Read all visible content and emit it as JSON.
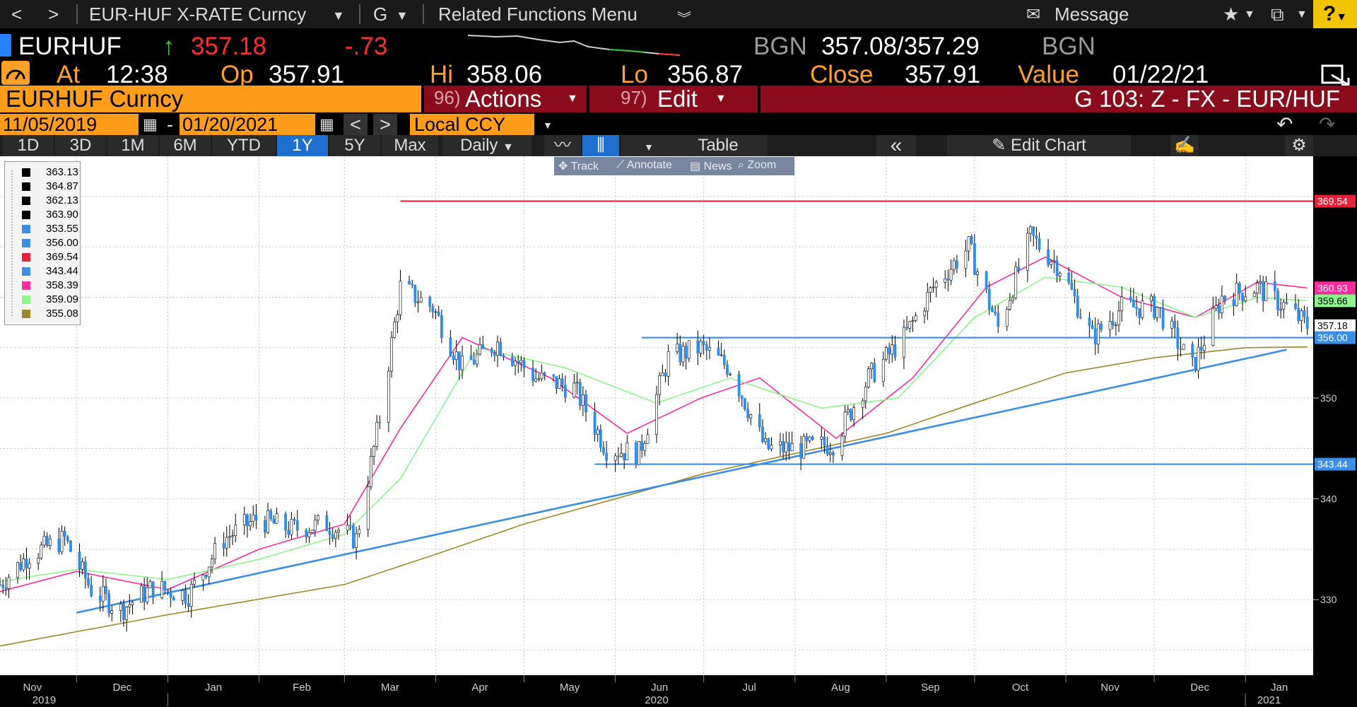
{
  "menu": {
    "back": "<",
    "forward": ">",
    "security": "EUR-HUF X-RATE Curncy",
    "function": "G",
    "related": "Related Functions Menu",
    "message": "Message",
    "help": "?"
  },
  "quote": {
    "ticker": "EURHUF",
    "last": "357.18",
    "change": "-.73",
    "bid_src": "BGN",
    "bid_ask": "357.08/357.29",
    "ask_src": "BGN",
    "at_label": "At",
    "time": "12:38",
    "open_label": "Op",
    "open": "357.91",
    "high_label": "Hi",
    "high": "358.06",
    "low_label": "Lo",
    "low": "356.87",
    "close_label": "Close",
    "close": "357.91",
    "value_label": "Value",
    "value_date": "01/22/21"
  },
  "actionbar": {
    "ticker_box": "EURHUF Curncy",
    "actions_num": "96)",
    "actions": "Actions",
    "edit_num": "97)",
    "edit": "Edit",
    "chart_id": "G 103: Z - FX - EUR/HUF"
  },
  "dates": {
    "start": "11/05/2019",
    "dash": "-",
    "end": "01/20/2021",
    "prev": "<",
    "next": ">",
    "currency": "Local CCY"
  },
  "timeframes": [
    "1D",
    "3D",
    "1M",
    "6M",
    "YTD",
    "1Y",
    "5Y",
    "Max"
  ],
  "active_timeframe": "1Y",
  "toolbar": {
    "period": "Daily",
    "table": "Table",
    "collapse": "«",
    "edit_chart": "Edit Chart"
  },
  "chart_tools": [
    "Track",
    "Annotate",
    "News",
    "Zoom"
  ],
  "legend": [
    {
      "value": "363.13",
      "color": "#000000"
    },
    {
      "value": "364.87",
      "color": "#000000"
    },
    {
      "value": "362.13",
      "color": "#000000"
    },
    {
      "value": "363.90",
      "color": "#000000"
    },
    {
      "value": "353.55",
      "color": "#3a8ee6"
    },
    {
      "value": "356.00",
      "color": "#3a8ee6"
    },
    {
      "value": "369.54",
      "color": "#e8203a"
    },
    {
      "value": "343.44",
      "color": "#3a8ee6"
    },
    {
      "value": "358.39",
      "color": "#ff2a9c"
    },
    {
      "value": "359.09",
      "color": "#8cf58c"
    },
    {
      "value": "355.08",
      "color": "#9a8a28"
    }
  ],
  "colors": {
    "up": "#ffffff",
    "down": "#2d8cf0",
    "resistance": "#e8203a",
    "support": "#3a8ee6",
    "ma_short": "#ff2a9c",
    "ma_mid": "#8cf58c",
    "ma_long": "#9a8a28"
  },
  "chart_data": {
    "type": "line",
    "title": "",
    "ylim": [
      322.5,
      374.0
    ],
    "xlim": [
      "2019-11-05",
      "2021-01-24"
    ],
    "y_ticks": [
      330,
      340,
      350
    ],
    "month_labels": [
      {
        "label": "Nov",
        "date": "2019-11-01"
      },
      {
        "label": "Dec",
        "date": "2019-12-01"
      },
      {
        "label": "Jan",
        "date": "2020-01-01"
      },
      {
        "label": "Feb",
        "date": "2020-02-01"
      },
      {
        "label": "Mar",
        "date": "2020-03-01"
      },
      {
        "label": "Apr",
        "date": "2020-04-01"
      },
      {
        "label": "May",
        "date": "2020-05-01"
      },
      {
        "label": "Jun",
        "date": "2020-06-01"
      },
      {
        "label": "Jul",
        "date": "2020-07-01"
      },
      {
        "label": "Aug",
        "date": "2020-08-01"
      },
      {
        "label": "Sep",
        "date": "2020-09-01"
      },
      {
        "label": "Oct",
        "date": "2020-10-01"
      },
      {
        "label": "Nov",
        "date": "2020-11-01"
      },
      {
        "label": "Dec",
        "date": "2020-12-01"
      },
      {
        "label": "Jan",
        "date": "2021-01-01"
      }
    ],
    "year_labels": [
      {
        "label": "2019",
        "date": "2019-11-20"
      },
      {
        "label": "2020",
        "date": "2020-06-15"
      },
      {
        "label": "2021",
        "date": "2021-01-09"
      }
    ],
    "price_axis_labels": [
      {
        "value": 369.54,
        "label": "369.54",
        "color": "#e8203a"
      },
      {
        "value": 360.93,
        "label": "360.93",
        "color": "#ff2a9c"
      },
      {
        "value": 359.66,
        "label": "359.66",
        "color": "#8cf58c"
      },
      {
        "value": 357.18,
        "label": "357.18",
        "color": "#ffffff"
      },
      {
        "value": 356.0,
        "label": "356.00",
        "color": "#3a8ee6"
      },
      {
        "value": 343.44,
        "label": "343.44",
        "color": "#3a8ee6"
      }
    ],
    "horizontal_lines": [
      {
        "name": "",
        "value": 369.54,
        "from": "2020-03-20",
        "to": "2021-01-24",
        "color": "#e8203a"
      },
      {
        "name": "",
        "value": 356.0,
        "from": "2020-06-10",
        "to": "2021-01-24",
        "color": "#3a8ee6"
      },
      {
        "name": "",
        "value": 343.44,
        "from": "2020-05-25",
        "to": "2021-01-24",
        "color": "#3a8ee6"
      }
    ],
    "trendline": {
      "x": [
        "2019-12-01",
        "2021-01-15"
      ],
      "y": [
        328.7,
        354.8
      ],
      "color": "#3a8ee6"
    },
    "price_series": {
      "x": [
        "2019-11-05",
        "2019-11-15",
        "2019-11-27",
        "2019-12-06",
        "2019-12-16",
        "2019-12-27",
        "2020-01-08",
        "2020-01-20",
        "2020-01-31",
        "2020-02-12",
        "2020-02-24",
        "2020-03-05",
        "2020-03-13",
        "2020-03-20",
        "2020-03-31",
        "2020-04-10",
        "2020-04-22",
        "2020-05-05",
        "2020-05-18",
        "2020-05-29",
        "2020-06-09",
        "2020-06-19",
        "2020-06-30",
        "2020-07-10",
        "2020-07-22",
        "2020-08-03",
        "2020-08-14",
        "2020-08-26",
        "2020-09-07",
        "2020-09-17",
        "2020-09-29",
        "2020-10-09",
        "2020-10-20",
        "2020-10-30",
        "2020-11-10",
        "2020-11-20",
        "2020-12-02",
        "2020-12-14",
        "2020-12-24",
        "2021-01-05",
        "2021-01-15",
        "2021-01-22"
      ],
      "y": [
        331.5,
        334.5,
        336.0,
        331.0,
        329.0,
        331.2,
        330.5,
        336.0,
        338.0,
        337.0,
        337.5,
        336.0,
        348.0,
        361.0,
        359.0,
        353.0,
        355.5,
        352.0,
        351.0,
        345.0,
        344.5,
        354.0,
        355.0,
        353.0,
        345.0,
        345.0,
        345.5,
        352.0,
        356.0,
        361.0,
        365.0,
        357.0,
        366.0,
        363.0,
        356.0,
        359.0,
        359.0,
        353.0,
        360.0,
        361.0,
        359.0,
        357.18
      ]
    },
    "series": [
      {
        "name": "",
        "color": "#ff2a9c",
        "x": [
          "2019-11-05",
          "2019-12-01",
          "2020-01-01",
          "2020-02-01",
          "2020-03-01",
          "2020-03-20",
          "2020-04-10",
          "2020-05-10",
          "2020-06-05",
          "2020-06-30",
          "2020-07-20",
          "2020-08-15",
          "2020-09-10",
          "2020-10-05",
          "2020-10-25",
          "2020-11-20",
          "2020-12-15",
          "2021-01-05",
          "2021-01-22"
        ],
        "y": [
          330.8,
          332.8,
          331.0,
          335.0,
          337.5,
          347.0,
          356.0,
          352.0,
          346.5,
          350.0,
          352.0,
          346.0,
          352.0,
          361.0,
          364.0,
          360.0,
          358.0,
          361.5,
          360.93
        ]
      },
      {
        "name": "",
        "color": "#8cf58c",
        "x": [
          "2019-11-05",
          "2019-12-01",
          "2020-01-01",
          "2020-02-01",
          "2020-03-01",
          "2020-03-20",
          "2020-04-15",
          "2020-05-15",
          "2020-06-15",
          "2020-07-10",
          "2020-08-10",
          "2020-09-05",
          "2020-10-01",
          "2020-10-25",
          "2020-11-20",
          "2020-12-15",
          "2021-01-05",
          "2021-01-22"
        ],
        "y": [
          331.8,
          333.0,
          332.0,
          334.0,
          336.5,
          342.0,
          355.0,
          353.0,
          349.5,
          352.0,
          349.0,
          350.0,
          358.0,
          362.0,
          361.0,
          358.0,
          360.0,
          359.66
        ]
      },
      {
        "name": "",
        "color": "#9a8a28",
        "x": [
          "2019-11-05",
          "2020-01-01",
          "2020-03-01",
          "2020-04-01",
          "2020-05-01",
          "2020-06-01",
          "2020-07-01",
          "2020-08-01",
          "2020-09-01",
          "2020-10-01",
          "2020-11-01",
          "2020-12-01",
          "2021-01-01",
          "2021-01-22"
        ],
        "y": [
          325.4,
          328.5,
          331.5,
          334.5,
          337.5,
          340.0,
          342.5,
          344.5,
          346.5,
          349.5,
          352.5,
          354.0,
          355.0,
          355.08
        ]
      }
    ]
  }
}
